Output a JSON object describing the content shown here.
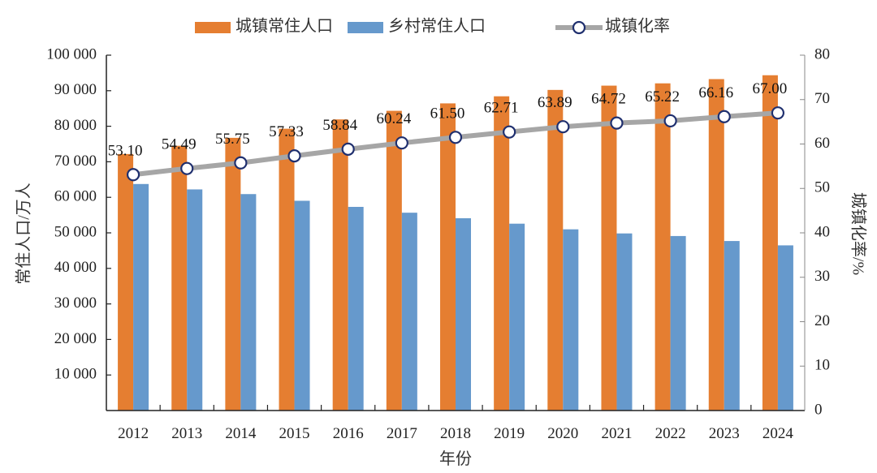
{
  "chart_data": {
    "type": "bar",
    "title": "",
    "categories": [
      "2012",
      "2013",
      "2014",
      "2015",
      "2016",
      "2017",
      "2018",
      "2019",
      "2020",
      "2021",
      "2022",
      "2023",
      "2024"
    ],
    "series": [
      {
        "name": "城镇常住人口",
        "type": "bar",
        "axis": "left",
        "color": "#E57E31",
        "values": [
          72175,
          74502,
          76738,
          79302,
          81924,
          84343,
          86433,
          88426,
          90220,
          91425,
          92071,
          93267,
          94350
        ]
      },
      {
        "name": "乡村常住人口",
        "type": "bar",
        "axis": "left",
        "color": "#6699CC",
        "values": [
          63747,
          62224,
          60908,
          59024,
          57308,
          55668,
          54108,
          52582,
          50992,
          49835,
          49104,
          47700,
          46478
        ]
      },
      {
        "name": "城镇化率",
        "type": "line",
        "axis": "right",
        "color": "#A6A6A6",
        "marker_edge": "#1F2F6E",
        "values": [
          53.1,
          54.49,
          55.75,
          57.33,
          58.84,
          60.24,
          61.5,
          62.71,
          63.89,
          64.72,
          65.22,
          66.16,
          67.0
        ],
        "labels": [
          "53.10",
          "54.49",
          "55.75",
          "57.33",
          "58.84",
          "60.24",
          "61.50",
          "62.71",
          "63.89",
          "64.72",
          "65.22",
          "66.16",
          "67.00"
        ]
      }
    ],
    "xlabel": "年份",
    "ylabel": "常住人口/万人",
    "y2label": "城镇化率/%",
    "ylim": [
      0,
      100000
    ],
    "y2lim": [
      0,
      80
    ],
    "yticks": [
      10000,
      20000,
      30000,
      40000,
      50000,
      60000,
      70000,
      80000,
      90000,
      100000
    ],
    "ytick_labels": [
      "10 000",
      "20 000",
      "30 000",
      "40 000",
      "50 000",
      "60 000",
      "70 000",
      "80 000",
      "90 000",
      "100 000"
    ],
    "y2ticks": [
      0,
      10,
      20,
      30,
      40,
      50,
      60,
      70,
      80
    ],
    "y2tick_labels": [
      "0",
      "10",
      "20",
      "30",
      "40",
      "50",
      "60",
      "70",
      "80"
    ],
    "grid": false,
    "legend_position": "top-center"
  }
}
